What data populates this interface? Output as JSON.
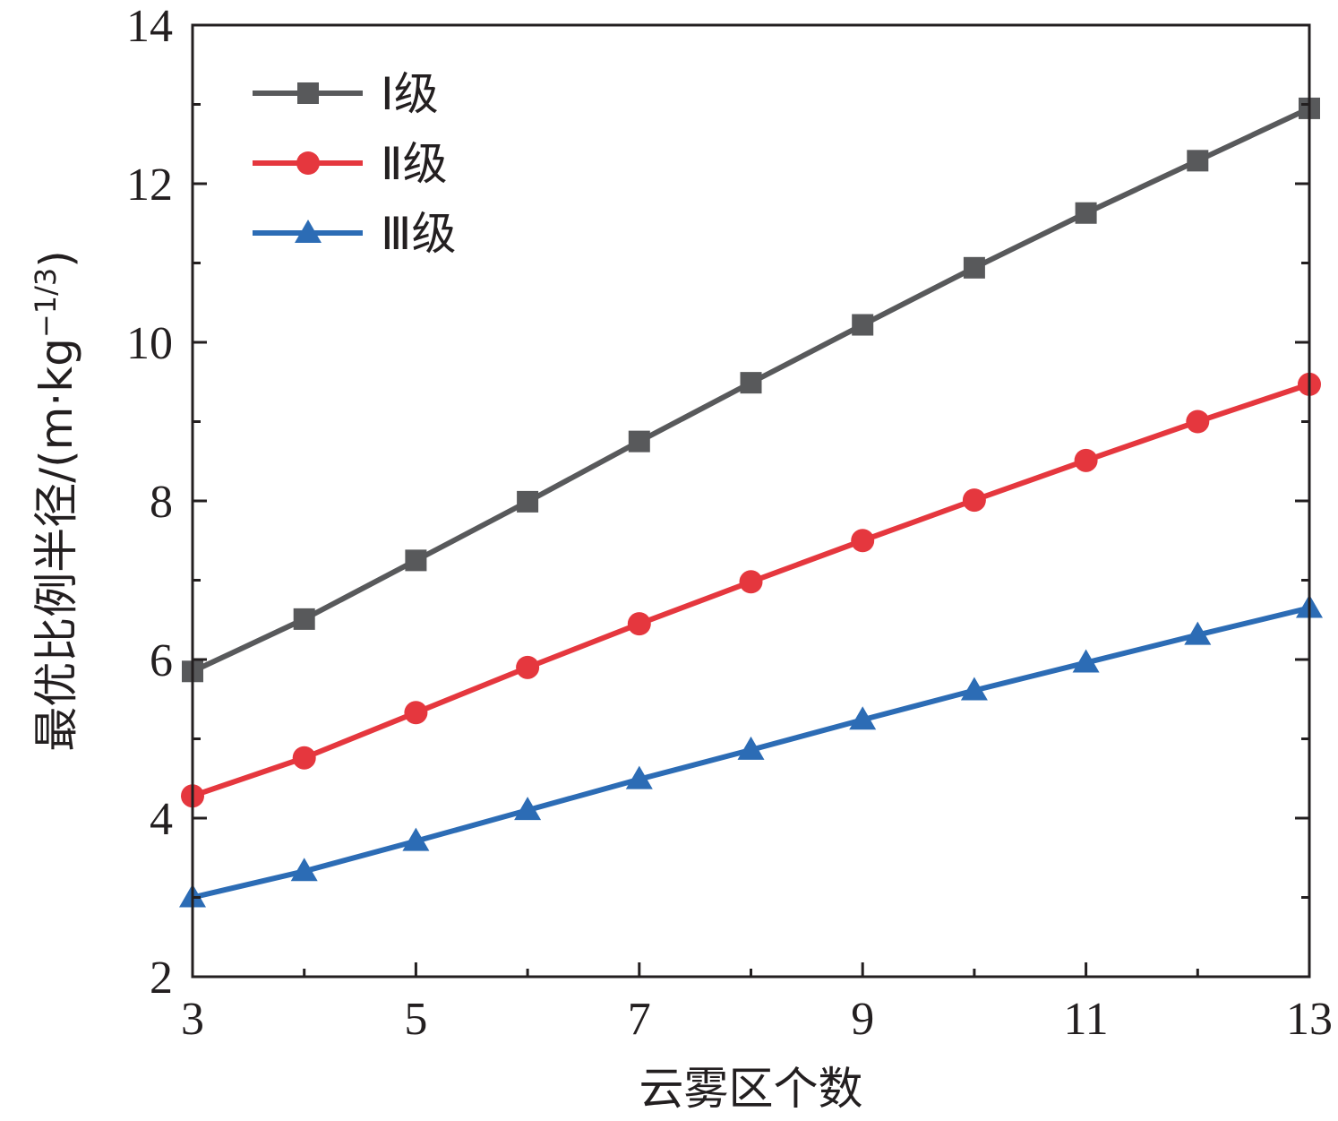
{
  "chart_data": {
    "type": "line",
    "xlabel": "云雾区个数",
    "ylabel": "最优比例半径/(m·kg−1/3)",
    "ylabel_main": "最优比例半径/(m·kg",
    "ylabel_exponent": "−1/3",
    "ylabel_close": ")",
    "xlim": [
      3,
      13
    ],
    "ylim": [
      2,
      14
    ],
    "x_ticks": [
      3,
      5,
      7,
      9,
      11,
      13
    ],
    "y_ticks": [
      2,
      4,
      6,
      8,
      10,
      12,
      14
    ],
    "grid": false,
    "legend_position": "top-left",
    "x": [
      3,
      4,
      5,
      6,
      7,
      8,
      9,
      10,
      11,
      12,
      13
    ],
    "series": [
      {
        "name": "Ⅰ级",
        "color": "#58595b",
        "marker": "square",
        "values": [
          5.85,
          6.51,
          7.25,
          7.99,
          8.75,
          9.49,
          10.22,
          10.94,
          11.63,
          12.29,
          12.95
        ]
      },
      {
        "name": "Ⅱ级",
        "color": "#e5373e",
        "marker": "circle",
        "values": [
          4.28,
          4.76,
          5.33,
          5.9,
          6.45,
          6.98,
          7.5,
          8.01,
          8.51,
          9.0,
          9.47
        ]
      },
      {
        "name": "Ⅲ级",
        "color": "#2c6cb5",
        "marker": "triangle",
        "values": [
          3.0,
          3.33,
          3.71,
          4.1,
          4.49,
          4.86,
          5.24,
          5.61,
          5.96,
          6.31,
          6.65
        ]
      }
    ]
  }
}
